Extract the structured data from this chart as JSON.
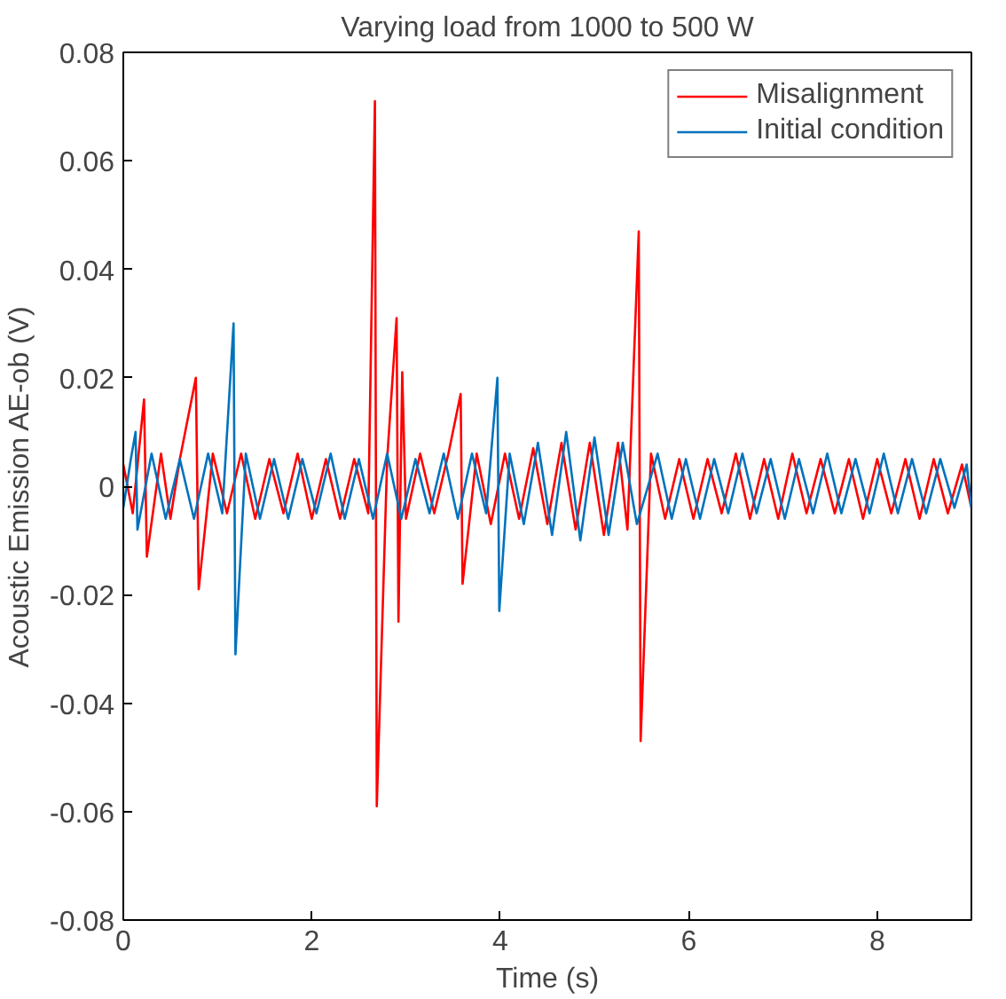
{
  "chart_data": {
    "type": "line",
    "title": "Varying load from 1000 to 500 W",
    "xlabel": "Time (s)",
    "ylabel": "Acoustic Emission AE-ob (V)",
    "xlim": [
      0,
      9
    ],
    "ylim": [
      -0.08,
      0.08
    ],
    "xticks": [
      0,
      2,
      4,
      6,
      8
    ],
    "yticks": [
      -0.08,
      -0.06,
      -0.04,
      -0.02,
      0,
      0.02,
      0.04,
      0.06,
      0.08
    ],
    "grid": false,
    "legend": "top right",
    "marker": "none",
    "line_style": "solid",
    "series": [
      {
        "name": "Misalignment",
        "color": "#ff0000",
        "x": [
          0,
          0.1,
          0.22,
          0.25,
          0.4,
          0.5,
          0.6,
          0.77,
          0.8,
          0.95,
          1.1,
          1.25,
          1.4,
          1.55,
          1.7,
          1.85,
          2.0,
          2.15,
          2.3,
          2.45,
          2.6,
          2.67,
          2.69,
          2.8,
          2.9,
          2.92,
          2.96,
          3.0,
          3.15,
          3.3,
          3.45,
          3.58,
          3.6,
          3.75,
          3.9,
          4.05,
          4.2,
          4.35,
          4.5,
          4.65,
          4.8,
          4.95,
          5.1,
          5.25,
          5.35,
          5.47,
          5.49,
          5.6,
          5.75,
          5.9,
          6.05,
          6.2,
          6.35,
          6.5,
          6.65,
          6.8,
          6.95,
          7.1,
          7.25,
          7.4,
          7.55,
          7.7,
          7.85,
          8.0,
          8.15,
          8.3,
          8.45,
          8.6,
          8.75,
          8.9,
          9.0
        ],
        "values": [
          0.004,
          -0.005,
          0.016,
          -0.013,
          0.006,
          -0.006,
          0.005,
          0.02,
          -0.019,
          0.006,
          -0.005,
          0.006,
          -0.006,
          0.005,
          -0.005,
          0.006,
          -0.006,
          0.005,
          -0.006,
          0.005,
          -0.005,
          0.071,
          -0.059,
          0.005,
          0.031,
          -0.025,
          0.021,
          -0.006,
          0.006,
          -0.005,
          0.006,
          0.017,
          -0.018,
          0.006,
          -0.007,
          0.006,
          -0.006,
          0.007,
          -0.007,
          0.008,
          -0.008,
          0.008,
          -0.009,
          0.008,
          -0.008,
          0.047,
          -0.047,
          0.006,
          -0.006,
          0.005,
          -0.006,
          0.005,
          -0.005,
          0.006,
          -0.006,
          0.005,
          -0.006,
          0.006,
          -0.005,
          0.005,
          -0.005,
          0.005,
          -0.006,
          0.005,
          -0.005,
          0.005,
          -0.006,
          0.005,
          -0.005,
          0.004,
          -0.004
        ]
      },
      {
        "name": "Initial condition",
        "color": "#0072bd",
        "x": [
          0,
          0.08,
          0.13,
          0.15,
          0.3,
          0.45,
          0.6,
          0.75,
          0.9,
          1.05,
          1.17,
          1.19,
          1.3,
          1.45,
          1.6,
          1.75,
          1.9,
          2.05,
          2.2,
          2.35,
          2.5,
          2.65,
          2.8,
          2.95,
          3.1,
          3.25,
          3.4,
          3.55,
          3.7,
          3.85,
          3.97,
          3.99,
          4.1,
          4.25,
          4.4,
          4.55,
          4.7,
          4.85,
          5.0,
          5.15,
          5.3,
          5.45,
          5.67,
          5.82,
          5.97,
          6.12,
          6.27,
          6.42,
          6.57,
          6.72,
          6.87,
          7.02,
          7.17,
          7.32,
          7.47,
          7.62,
          7.77,
          7.92,
          8.07,
          8.22,
          8.37,
          8.52,
          8.67,
          8.82,
          8.95,
          9.0
        ],
        "values": [
          -0.004,
          0.005,
          0.01,
          -0.008,
          0.006,
          -0.006,
          0.005,
          -0.006,
          0.006,
          -0.005,
          0.03,
          -0.031,
          0.006,
          -0.006,
          0.005,
          -0.006,
          0.005,
          -0.005,
          0.006,
          -0.006,
          0.005,
          -0.006,
          0.006,
          -0.006,
          0.005,
          -0.005,
          0.006,
          -0.006,
          0.006,
          -0.005,
          0.02,
          -0.023,
          0.006,
          -0.007,
          0.008,
          -0.009,
          0.01,
          -0.01,
          0.009,
          -0.009,
          0.008,
          -0.007,
          0.006,
          -0.006,
          0.005,
          -0.006,
          0.005,
          -0.005,
          0.006,
          -0.005,
          0.005,
          -0.006,
          0.005,
          -0.005,
          0.006,
          -0.005,
          0.005,
          -0.005,
          0.006,
          -0.005,
          0.005,
          -0.005,
          0.005,
          -0.004,
          0.004,
          -0.004
        ]
      }
    ]
  }
}
